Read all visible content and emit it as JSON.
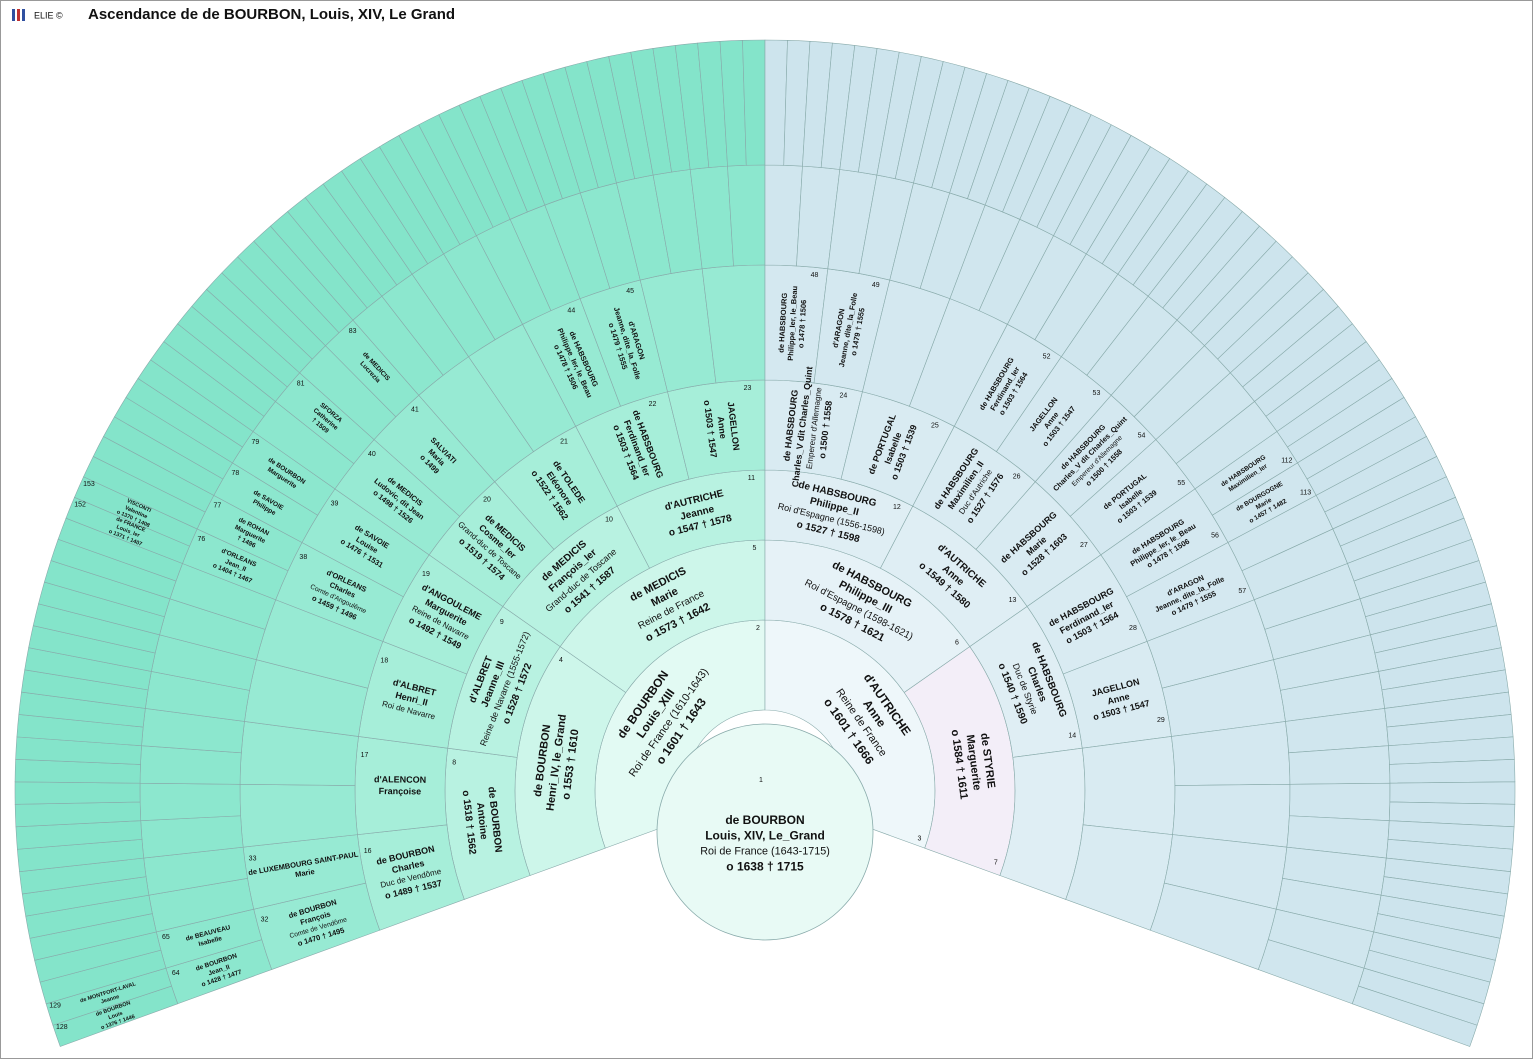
{
  "header": {
    "logo": "ELIE ©",
    "title": "Ascendance de de BOURBON, Louis, XIV, Le Grand"
  },
  "persons": [
    {
      "sosa": 1,
      "surname": "de BOURBON",
      "given": "Louis, XIV, Le_Grand",
      "title": "Roi de France (1643-1715)",
      "dates": "o 1638 † 1715"
    },
    {
      "sosa": 2,
      "surname": "de BOURBON",
      "given": "Louis_XIII",
      "title": "Roi de France (1610-1643)",
      "dates": "o 1601 † 1643"
    },
    {
      "sosa": 3,
      "surname": "d'AUTRICHE",
      "given": "Anne",
      "title": "Reine de France",
      "dates": "o 1601 † 1666"
    },
    {
      "sosa": 4,
      "surname": "de BOURBON",
      "given": "Henri_IV, le_Grand",
      "dates": "o 1553 † 1610"
    },
    {
      "sosa": 5,
      "surname": "de MEDICIS",
      "given": "Marie",
      "title": "Reine de France",
      "dates": "o 1573 † 1642"
    },
    {
      "sosa": 6,
      "surname": "de HABSBOURG",
      "given": "Philippe_III",
      "title": "Roi d'Espagne (1598-1621)",
      "dates": "o 1578 † 1621"
    },
    {
      "sosa": 7,
      "surname": "de STYRIE",
      "given": "Marguerite",
      "dates": "o 1584 † 1611"
    },
    {
      "sosa": 8,
      "surname": "de BOURBON",
      "given": "Antoine",
      "dates": "o 1518 † 1562"
    },
    {
      "sosa": 9,
      "surname": "d'ALBRET",
      "given": "Jeanne_III",
      "title": "Reine de Navarre (1555-1572)",
      "dates": "o 1528 † 1572"
    },
    {
      "sosa": 10,
      "surname": "de MEDICIS",
      "given": "François_Ier",
      "title": "Grand-duc de Toscane",
      "dates": "o 1541 † 1587"
    },
    {
      "sosa": 11,
      "surname": "d'AUTRICHE",
      "given": "Jeanne",
      "dates": "o 1547 † 1578"
    },
    {
      "sosa": 12,
      "surname": "de HABSBOURG",
      "given": "Philippe_II",
      "title": "Roi d'Espagne (1556-1598)",
      "dates": "o 1527 † 1598"
    },
    {
      "sosa": 13,
      "surname": "d'AUTRICHE",
      "given": "Anne",
      "dates": "o 1549 † 1580"
    },
    {
      "sosa": 14,
      "surname": "de HABSBOURG",
      "given": "Charles",
      "title": "Duc de Styrie",
      "dates": "o 1540 † 1590"
    },
    {
      "sosa": 16,
      "surname": "de BOURBON",
      "given": "Charles",
      "title": "Duc de Vendôme",
      "dates": "o 1489 † 1537"
    },
    {
      "sosa": 17,
      "surname": "d'ALENCON",
      "given": "Françoise"
    },
    {
      "sosa": 18,
      "surname": "d'ALBRET",
      "given": "Henri_II",
      "title": "Roi de Navarre"
    },
    {
      "sosa": 19,
      "surname": "d'ANGOULEME",
      "given": "Marguerite",
      "title": "Reine de Navarre",
      "dates": "o 1492 † 1549"
    },
    {
      "sosa": 20,
      "surname": "de MEDICIS",
      "given": "Cosme_Ier",
      "title": "Grand-duc de Toscane",
      "dates": "o 1519 † 1574"
    },
    {
      "sosa": 21,
      "surname": "de TOLEDE",
      "given": "Eléonore",
      "dates": "o 1522 † 1562"
    },
    {
      "sosa": 22,
      "surname": "de HABSBOURG",
      "given": "Ferdinand_Ier",
      "dates": "o 1503 † 1564"
    },
    {
      "sosa": 23,
      "surname": "JAGELLON",
      "given": "Anne",
      "dates": "o 1503 † 1547"
    },
    {
      "sosa": 24,
      "surname": "de HABSBOURG",
      "given": "Charles_V dit Charles_Quint",
      "title": "Empereur d'Allemagne",
      "dates": "o 1500 † 1558"
    },
    {
      "sosa": 25,
      "surname": "de PORTUGAL",
      "given": "Isabelle",
      "dates": "o 1503 † 1539"
    },
    {
      "sosa": 26,
      "surname": "de HABSBOURG",
      "given": "Maximilien_II",
      "title": "Duc d'Autriche",
      "dates": "o 1527 † 1576"
    },
    {
      "sosa": 27,
      "surname": "de HABSBOURG",
      "given": "Marie",
      "dates": "o 1528 † 1603"
    },
    {
      "sosa": 28,
      "surname": "de HABSBOURG",
      "given": "Ferdinand_Ier",
      "dates": "o 1503 † 1564"
    },
    {
      "sosa": 29,
      "surname": "JAGELLON",
      "given": "Anne",
      "dates": "o 1503 † 1547"
    },
    {
      "sosa": 32,
      "surname": "de BOURBON",
      "given": "François",
      "title": "Comte de Vendôme",
      "dates": "o 1470 † 1495"
    },
    {
      "sosa": 33,
      "surname": "de LUXEMBOURG SAINT-PAUL",
      "given": "Marie"
    },
    {
      "sosa": 38,
      "surname": "d'ORLEANS",
      "given": "Charles",
      "title": "Comte d'Angoulême",
      "dates": "o 1459 † 1496"
    },
    {
      "sosa": 39,
      "surname": "de SAVOIE",
      "given": "Louise",
      "dates": "o 1476 † 1531"
    },
    {
      "sosa": 40,
      "surname": "de MEDICIS",
      "given": "Ludovic, dit Jean",
      "dates": "o 1498 † 1526"
    },
    {
      "sosa": 41,
      "surname": "SALVIATI",
      "given": "Maria",
      "dates": "o 1499"
    },
    {
      "sosa": 44,
      "surname": "de HABSBOURG",
      "given": "Philippe_Ier, le_Beau",
      "dates": "o 1478 † 1506"
    },
    {
      "sosa": 45,
      "surname": "d'ARAGON",
      "given": "Jeanne, dite_la_Folle",
      "dates": "o 1479 † 1555"
    },
    {
      "sosa": 48,
      "surname": "de HABSBOURG",
      "given": "Philippe_Ier, le_Beau",
      "dates": "o 1478 † 1506"
    },
    {
      "sosa": 49,
      "surname": "d'ARAGON",
      "given": "Jeanne, dite_la_Folle",
      "dates": "o 1479 † 1555"
    },
    {
      "sosa": 52,
      "surname": "de HABSBOURG",
      "given": "Ferdinand_Ier",
      "dates": "o 1503 † 1564"
    },
    {
      "sosa": 53,
      "surname": "JAGELLON",
      "given": "Anne",
      "dates": "o 1503 † 1547"
    },
    {
      "sosa": 54,
      "surname": "de HABSBOURG",
      "given": "Charles_V dit Charles_Quint",
      "title": "Empereur d'Allemagne",
      "dates": "o 1500 † 1558"
    },
    {
      "sosa": 55,
      "surname": "de PORTUGAL",
      "given": "Isabelle",
      "dates": "o 1503 † 1539"
    },
    {
      "sosa": 56,
      "surname": "de HABSBOURG",
      "given": "Philippe_Ier, le_Beau",
      "dates": "o 1478 † 1506"
    },
    {
      "sosa": 57,
      "surname": "d'ARAGON",
      "given": "Jeanne, dite_la_Folle",
      "dates": "o 1479 † 1555"
    },
    {
      "sosa": 64,
      "surname": "de BOURBON",
      "given": "Jean_II",
      "dates": "o 1428 † 1477"
    },
    {
      "sosa": 65,
      "surname": "de BEAUVEAU",
      "given": "Isabelle"
    },
    {
      "sosa": 76,
      "surname": "d'ORLEANS",
      "given": "Jean_II",
      "dates": "o 1404 † 1467"
    },
    {
      "sosa": 77,
      "surname": "de ROHAN",
      "given": "Marguerite",
      "dates": "† 1496"
    },
    {
      "sosa": 78,
      "surname": "de SAVOIE",
      "given": "Philippe"
    },
    {
      "sosa": 79,
      "surname": "de BOURBON",
      "given": "Marguerite"
    },
    {
      "sosa": 81,
      "surname": "SFORZA",
      "given": "Catherine",
      "dates": "† 1509"
    },
    {
      "sosa": 83,
      "surname": "de MEDICIS",
      "given": "Lucrezia"
    },
    {
      "sosa": 112,
      "surname": "de HABSBOURG",
      "given": "Maximilien_Ier"
    },
    {
      "sosa": 113,
      "surname": "de BOURGOGNE",
      "given": "Marie",
      "dates": "o 1457 † 1482"
    },
    {
      "sosa": 128,
      "surname": "de BOURBON",
      "given": "Louis",
      "dates": "o 1376 † 1446"
    },
    {
      "sosa": 129,
      "surname": "de MONTFORT-LAVAL",
      "given": "Jeanne"
    },
    {
      "sosa": 152,
      "surname": "de FRANCE",
      "given": "Louis_Ier",
      "dates": "o 1371 † 1407"
    },
    {
      "sosa": 153,
      "surname": "VISCONTI",
      "given": "Valentine",
      "dates": "o 1370 † 1408"
    }
  ]
}
